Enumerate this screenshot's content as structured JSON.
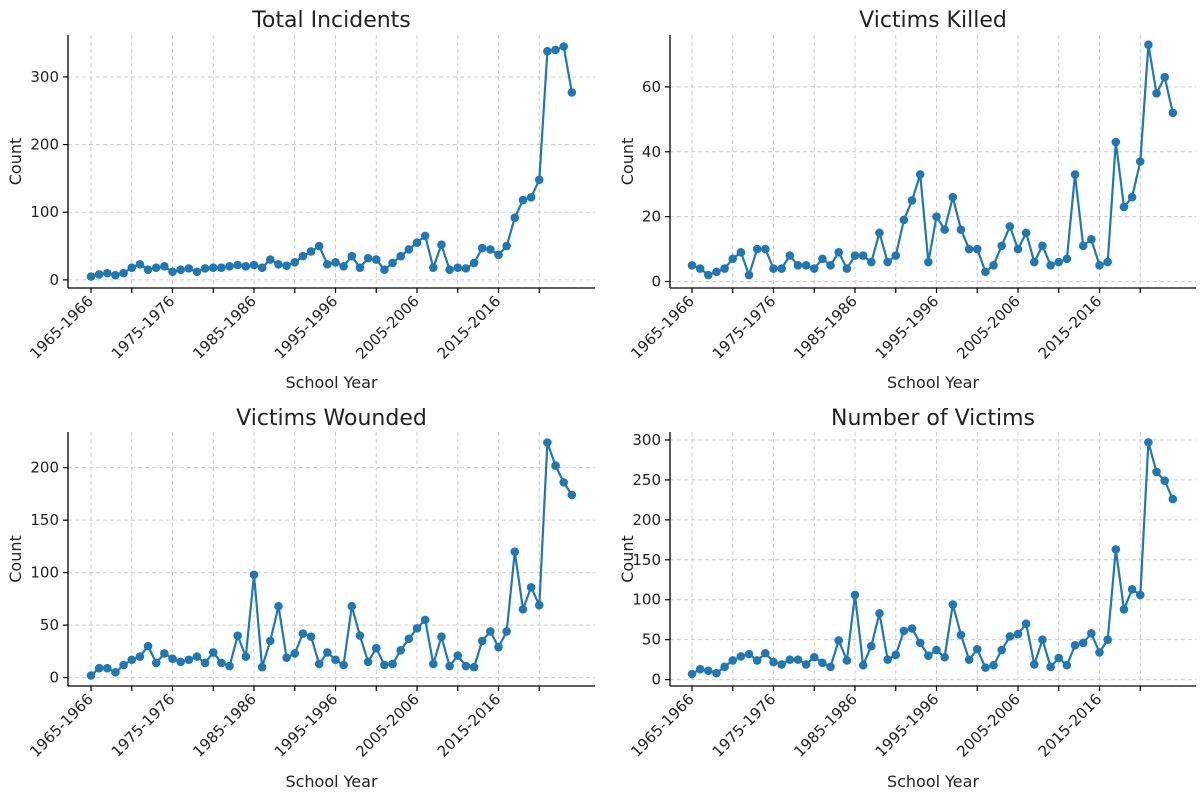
{
  "series_color": "#1f77b4",
  "chart_data": [
    {
      "type": "line",
      "title": "Total Incidents",
      "xlabel": "School Year",
      "ylabel": "Count",
      "x_tick_labels": [
        "1965-1966",
        "1975-1976",
        "1985-1986",
        "1995-1996",
        "2005-2006",
        "2015-2016"
      ],
      "y_ticks": [
        0,
        100,
        200,
        300
      ],
      "ylim": [
        -12,
        362
      ],
      "values": [
        5,
        8,
        10,
        7,
        10,
        18,
        23,
        15,
        18,
        20,
        12,
        15,
        17,
        12,
        17,
        18,
        18,
        20,
        22,
        20,
        22,
        18,
        30,
        23,
        21,
        26,
        35,
        42,
        50,
        23,
        26,
        20,
        35,
        18,
        32,
        30,
        15,
        25,
        35,
        45,
        55,
        65,
        18,
        52,
        15,
        18,
        17,
        25,
        47,
        45,
        37,
        50,
        92,
        118,
        122,
        148,
        338,
        340,
        345,
        277
      ]
    },
    {
      "type": "line",
      "title": "Victims Killed",
      "xlabel": "School Year",
      "ylabel": "Count",
      "x_tick_labels": [
        "1965-1966",
        "1975-1976",
        "1985-1986",
        "1995-1996",
        "2005-2006",
        "2015-2016"
      ],
      "y_ticks": [
        0,
        20,
        40,
        60
      ],
      "ylim": [
        -2,
        76
      ],
      "values": [
        5,
        4,
        2,
        3,
        4,
        7,
        9,
        2,
        10,
        10,
        4,
        4,
        8,
        5,
        5,
        4,
        7,
        5,
        9,
        4,
        8,
        8,
        6,
        15,
        6,
        8,
        19,
        25,
        33,
        6,
        20,
        16,
        26,
        16,
        10,
        10,
        3,
        5,
        11,
        17,
        10,
        15,
        6,
        11,
        5,
        6,
        7,
        33,
        11,
        13,
        5,
        6,
        43,
        23,
        26,
        37,
        73,
        58,
        63,
        52
      ]
    },
    {
      "type": "line",
      "title": "Victims Wounded",
      "xlabel": "School Year",
      "ylabel": "Count",
      "x_tick_labels": [
        "1965-1966",
        "1975-1976",
        "1985-1986",
        "1995-1996",
        "2005-2006",
        "2015-2016"
      ],
      "y_ticks": [
        0,
        50,
        100,
        150,
        200
      ],
      "ylim": [
        -8,
        234
      ],
      "values": [
        2,
        9,
        9,
        5,
        12,
        17,
        20,
        30,
        14,
        23,
        18,
        15,
        17,
        20,
        14,
        24,
        14,
        11,
        40,
        20,
        98,
        10,
        35,
        68,
        19,
        23,
        42,
        39,
        13,
        24,
        17,
        12,
        68,
        40,
        15,
        28,
        12,
        13,
        26,
        37,
        47,
        55,
        13,
        39,
        11,
        21,
        11,
        10,
        35,
        44,
        29,
        44,
        120,
        65,
        86,
        69,
        224,
        202,
        186,
        174
      ]
    },
    {
      "type": "line",
      "title": "Number of Victims",
      "xlabel": "School Year",
      "ylabel": "Count",
      "x_tick_labels": [
        "1965-1966",
        "1975-1976",
        "1985-1986",
        "1995-1996",
        "2005-2006",
        "2015-2016"
      ],
      "y_ticks": [
        0,
        50,
        100,
        150,
        200,
        250,
        300
      ],
      "ylim": [
        -8,
        310
      ],
      "values": [
        7,
        13,
        11,
        8,
        16,
        24,
        29,
        32,
        24,
        33,
        22,
        19,
        25,
        25,
        19,
        28,
        21,
        16,
        49,
        24,
        106,
        18,
        42,
        83,
        25,
        31,
        61,
        64,
        46,
        30,
        37,
        28,
        94,
        56,
        25,
        38,
        15,
        18,
        37,
        54,
        57,
        70,
        19,
        50,
        16,
        27,
        18,
        43,
        46,
        58,
        34,
        50,
        163,
        88,
        113,
        106,
        297,
        260,
        249,
        226
      ]
    }
  ]
}
